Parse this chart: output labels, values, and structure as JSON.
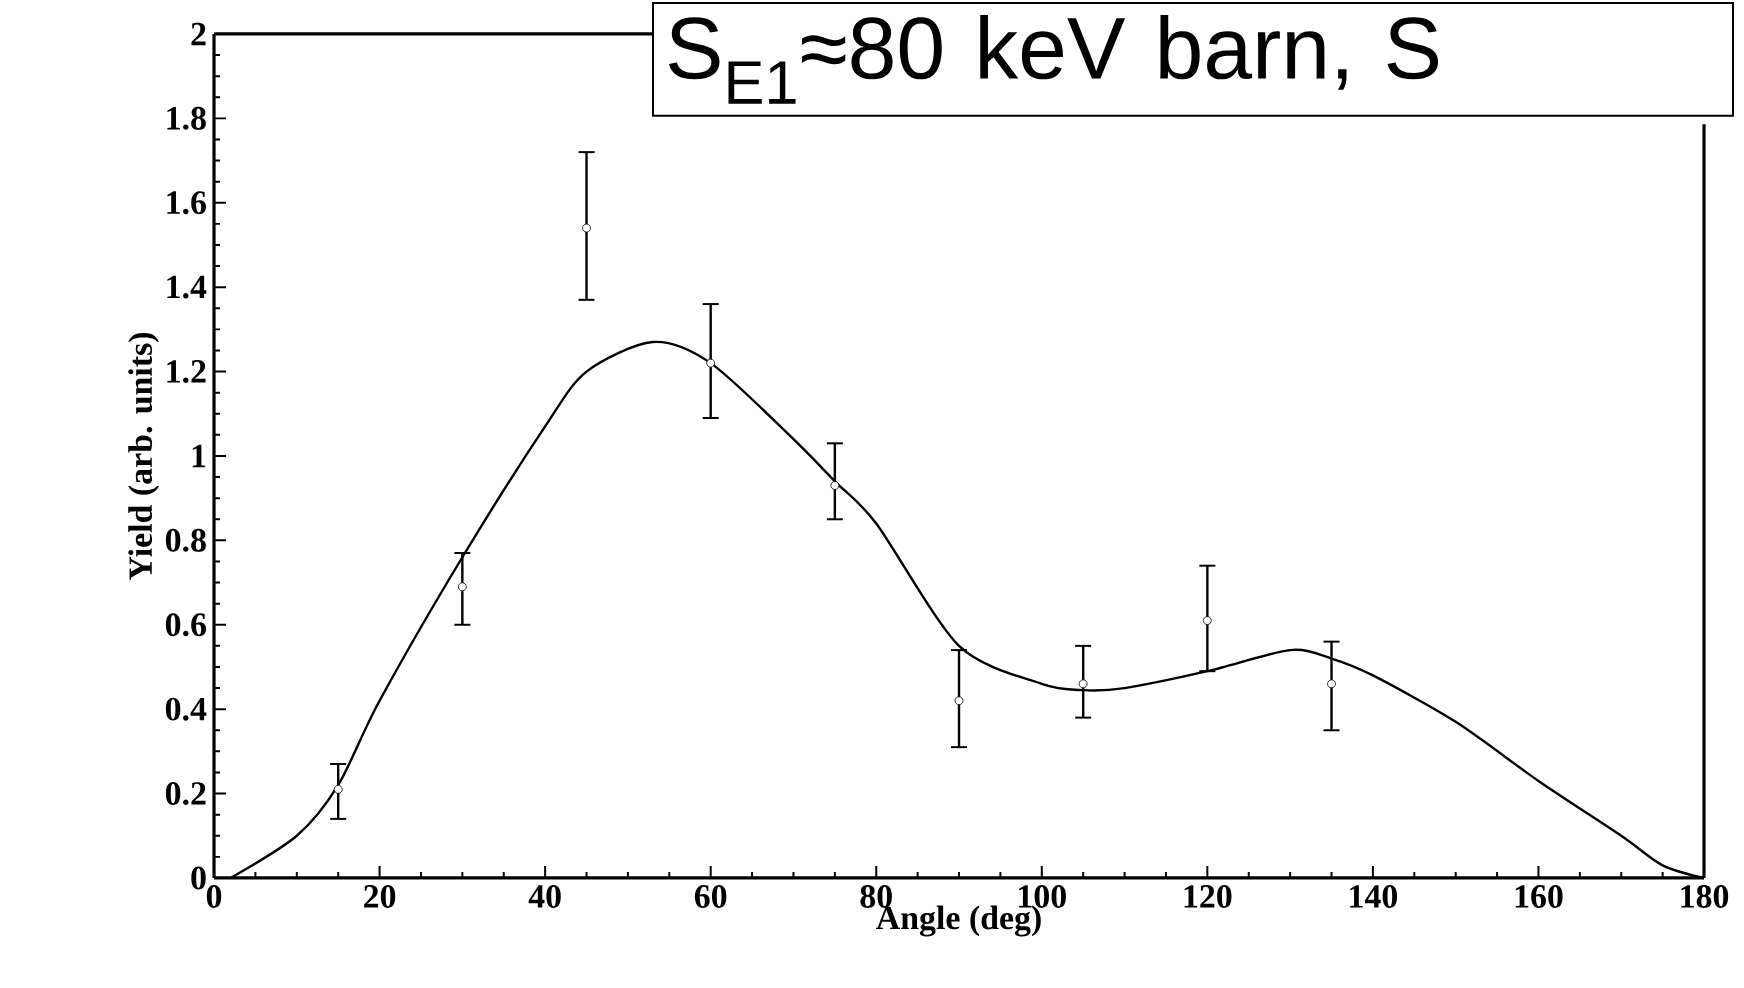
{
  "chart_data": {
    "type": "scatter",
    "xlabel": "Angle (deg)",
    "ylabel": "Yield (arb. units)",
    "annotations": [
      "S$_{E1}$≈80 keV barn, S"
    ],
    "xlim": [
      0,
      180
    ],
    "ylim": [
      0,
      2
    ],
    "xticks": [
      0,
      20,
      40,
      60,
      80,
      100,
      120,
      140,
      160,
      180
    ],
    "yticks": [
      0,
      0.2,
      0.4,
      0.6,
      0.8,
      1,
      1.2,
      1.4,
      1.6,
      1.8,
      2
    ],
    "grid": false,
    "series": [
      {
        "type": "scatter",
        "color": "#000000",
        "marker": "circle",
        "x": [
          15,
          30,
          45,
          60,
          75,
          90,
          105,
          120,
          135
        ],
        "values": [
          0.21,
          0.69,
          1.54,
          1.22,
          0.93,
          0.42,
          0.46,
          0.61,
          0.46
        ],
        "errors": [
          [
            0.14,
            0.27
          ],
          [
            0.6,
            0.77
          ],
          [
            1.37,
            1.72
          ],
          [
            1.09,
            1.36
          ],
          [
            0.85,
            1.03
          ],
          [
            0.31,
            0.54
          ],
          [
            0.38,
            0.55
          ],
          [
            0.49,
            0.74
          ],
          [
            0.35,
            0.56
          ]
        ]
      },
      {
        "type": "line",
        "color": "#000000",
        "marker": "none",
        "line_style": "solid",
        "x": [
          2,
          10,
          15,
          20,
          30,
          40,
          45,
          53,
          60,
          70,
          75,
          80,
          90,
          100,
          105,
          110,
          120,
          130,
          135,
          140,
          150,
          160,
          170,
          175,
          180
        ],
        "values": [
          0,
          0.1,
          0.22,
          0.42,
          0.76,
          1.07,
          1.2,
          1.27,
          1.22,
          1.04,
          0.94,
          0.84,
          0.55,
          0.46,
          0.445,
          0.45,
          0.49,
          0.54,
          0.52,
          0.48,
          0.37,
          0.23,
          0.1,
          0.03,
          0
        ]
      }
    ]
  }
}
